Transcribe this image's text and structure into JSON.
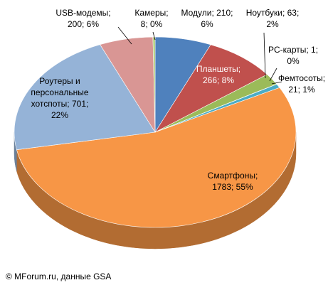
{
  "chart_data": {
    "type": "pie",
    "style": "3d",
    "slices": [
      {
        "label": "Модули",
        "value": 210,
        "percent": "6%",
        "color": "#4f81bd"
      },
      {
        "label": "Планшеты",
        "value": 266,
        "percent": "8%",
        "color": "#c0504d"
      },
      {
        "label": "Ноутбуки",
        "value": 63,
        "percent": "2%",
        "color": "#9bbb59"
      },
      {
        "label": "PC-карты",
        "value": 1,
        "percent": "0%",
        "color": "#8064a2"
      },
      {
        "label": "Фемтосоты",
        "value": 21,
        "percent": "1%",
        "color": "#4bacc6"
      },
      {
        "label": "Смартфоны",
        "value": 1783,
        "percent": "55%",
        "color": "#f79646"
      },
      {
        "label": "Роутеры и персональные хотспоты",
        "value": 701,
        "percent": "22%",
        "color": "#95b3d7"
      },
      {
        "label": "USB-модемы",
        "value": 200,
        "percent": "6%",
        "color": "#d99694"
      },
      {
        "label": "Камеры",
        "value": 8,
        "percent": "0%",
        "color": "#a8c66c"
      }
    ],
    "labels": [
      {
        "lines": [
          "Модули; 210;",
          "6%"
        ],
        "color": "#000000"
      },
      {
        "lines": [
          "Планшеты;",
          "266; 8%"
        ],
        "color": "#ffffff"
      },
      {
        "lines": [
          "Ноутбуки; 63;",
          "2%"
        ],
        "color": "#000000"
      },
      {
        "lines": [
          "PC-карты; 1;",
          "0%"
        ],
        "color": "#000000"
      },
      {
        "lines": [
          "Фемтосоты;",
          "21; 1%"
        ],
        "color": "#000000"
      },
      {
        "lines": [
          "Смартфоны;",
          "1783; 55%"
        ],
        "color": "#000000"
      },
      {
        "lines": [
          "Роутеры и",
          "персональные",
          "хотспоты; 701;",
          "22%"
        ],
        "color": "#000000"
      },
      {
        "lines": [
          "USB-модемы;",
          "200; 6%"
        ],
        "color": "#000000"
      },
      {
        "lines": [
          "Камеры;",
          "8; 0%"
        ],
        "color": "#000000"
      }
    ]
  },
  "credit": "© MForum.ru, данные GSA"
}
